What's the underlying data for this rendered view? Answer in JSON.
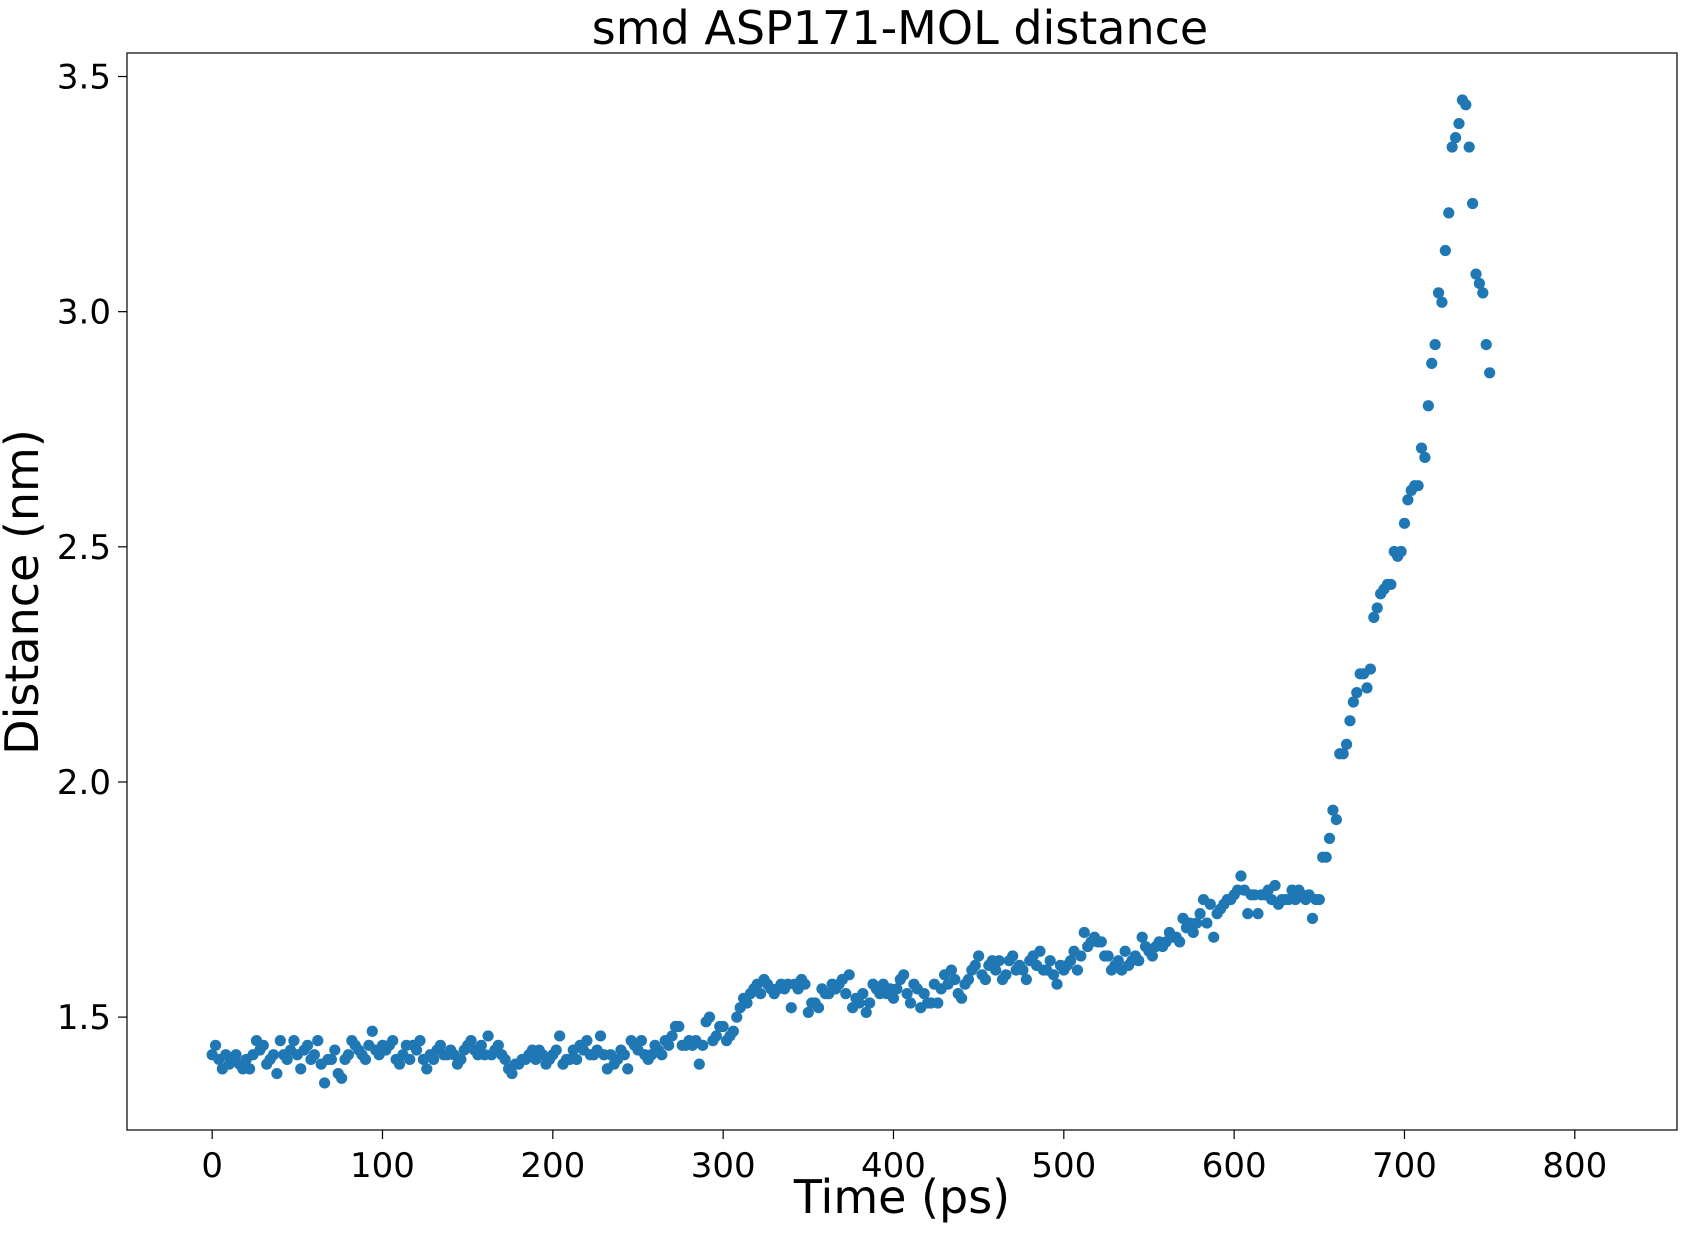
{
  "chart_data": {
    "type": "scatter",
    "title": "smd ASP171-MOL distance",
    "xlabel": "Time (ps)",
    "ylabel": "Distance (nm)",
    "xlim": [
      -50,
      860
    ],
    "ylim": [
      1.26,
      3.55
    ],
    "xticks": [
      0,
      100,
      200,
      300,
      400,
      500,
      600,
      700,
      800
    ],
    "yticks": [
      1.5,
      2.0,
      2.5,
      3.0,
      3.5
    ],
    "ytick_labels": [
      "1.5",
      "2.0",
      "2.5",
      "3.0",
      "3.5"
    ],
    "grid": false,
    "marker_color": "#1f77b4",
    "series": [
      {
        "x_start": 0,
        "x_step": 2,
        "y": [
          1.42,
          1.44,
          1.41,
          1.39,
          1.42,
          1.4,
          1.41,
          1.42,
          1.4,
          1.39,
          1.41,
          1.39,
          1.42,
          1.45,
          1.43,
          1.44,
          1.4,
          1.41,
          1.42,
          1.38,
          1.45,
          1.42,
          1.41,
          1.43,
          1.45,
          1.42,
          1.39,
          1.43,
          1.44,
          1.41,
          1.42,
          1.45,
          1.4,
          1.36,
          1.41,
          1.41,
          1.43,
          1.38,
          1.37,
          1.41,
          1.42,
          1.45,
          1.44,
          1.43,
          1.42,
          1.41,
          1.44,
          1.47,
          1.43,
          1.42,
          1.44,
          1.43,
          1.44,
          1.45,
          1.41,
          1.4,
          1.42,
          1.44,
          1.41,
          1.44,
          1.43,
          1.45,
          1.41,
          1.39,
          1.42,
          1.41,
          1.43,
          1.44,
          1.42,
          1.42,
          1.43,
          1.42,
          1.4,
          1.41,
          1.43,
          1.44,
          1.45,
          1.43,
          1.42,
          1.44,
          1.42,
          1.46,
          1.42,
          1.43,
          1.44,
          1.42,
          1.41,
          1.39,
          1.38,
          1.4,
          1.4,
          1.41,
          1.41,
          1.42,
          1.43,
          1.41,
          1.43,
          1.42,
          1.4,
          1.41,
          1.42,
          1.43,
          1.46,
          1.4,
          1.41,
          1.41,
          1.43,
          1.41,
          1.44,
          1.43,
          1.45,
          1.42,
          1.42,
          1.43,
          1.46,
          1.42,
          1.39,
          1.42,
          1.4,
          1.41,
          1.43,
          1.42,
          1.39,
          1.45,
          1.44,
          1.43,
          1.45,
          1.42,
          1.41,
          1.42,
          1.44,
          1.43,
          1.42,
          1.45,
          1.44,
          1.46,
          1.48,
          1.48,
          1.44,
          1.44,
          1.45,
          1.44,
          1.45,
          1.4,
          1.44,
          1.49,
          1.5,
          1.45,
          1.46,
          1.48,
          1.48,
          1.45,
          1.46,
          1.47,
          1.5,
          1.52,
          1.54,
          1.53,
          1.55,
          1.56,
          1.57,
          1.55,
          1.58,
          1.57,
          1.56,
          1.55,
          1.56,
          1.57,
          1.56,
          1.57,
          1.52,
          1.57,
          1.56,
          1.58,
          1.57,
          1.51,
          1.53,
          1.53,
          1.52,
          1.56,
          1.55,
          1.55,
          1.57,
          1.56,
          1.57,
          1.58,
          1.55,
          1.59,
          1.52,
          1.54,
          1.53,
          1.55,
          1.51,
          1.53,
          1.57,
          1.56,
          1.55,
          1.57,
          1.55,
          1.56,
          1.54,
          1.56,
          1.58,
          1.59,
          1.55,
          1.53,
          1.57,
          1.56,
          1.52,
          1.55,
          1.53,
          1.53,
          1.57,
          1.53,
          1.56,
          1.59,
          1.57,
          1.6,
          1.58,
          1.55,
          1.54,
          1.57,
          1.58,
          1.6,
          1.61,
          1.63,
          1.59,
          1.58,
          1.61,
          1.62,
          1.6,
          1.62,
          1.58,
          1.59,
          1.62,
          1.63,
          1.6,
          1.61,
          1.6,
          1.58,
          1.62,
          1.63,
          1.61,
          1.64,
          1.6,
          1.6,
          1.62,
          1.59,
          1.57,
          1.61,
          1.6,
          1.61,
          1.62,
          1.64,
          1.6,
          1.63,
          1.68,
          1.65,
          1.66,
          1.67,
          1.66,
          1.66,
          1.63,
          1.63,
          1.6,
          1.61,
          1.62,
          1.6,
          1.64,
          1.61,
          1.62,
          1.63,
          1.62,
          1.67,
          1.65,
          1.64,
          1.63,
          1.65,
          1.66,
          1.65,
          1.66,
          1.68,
          1.67,
          1.67,
          1.66,
          1.71,
          1.69,
          1.7,
          1.68,
          1.7,
          1.72,
          1.75,
          1.7,
          1.74,
          1.67,
          1.72,
          1.73,
          1.74,
          1.75,
          1.75,
          1.76,
          1.77,
          1.8,
          1.77,
          1.72,
          1.76,
          1.76,
          1.72,
          1.76,
          1.76,
          1.77,
          1.75,
          1.78,
          1.74,
          1.75,
          1.75,
          1.75,
          1.77,
          1.75,
          1.77,
          1.76,
          1.75,
          1.76,
          1.71,
          1.75,
          1.75,
          1.84,
          1.84,
          1.88,
          1.94,
          1.92,
          2.06,
          2.06,
          2.08,
          2.13,
          2.17,
          2.19,
          2.23,
          2.23,
          2.2,
          2.24,
          2.35,
          2.37,
          2.4,
          2.41,
          2.42,
          2.42,
          2.49,
          2.48,
          2.49,
          2.55,
          2.6,
          2.62,
          2.63,
          2.63,
          2.71,
          2.69,
          2.8,
          2.89,
          2.93,
          3.04,
          3.02,
          3.13,
          3.21,
          3.35,
          3.37,
          3.4,
          3.45,
          3.44,
          3.35,
          3.23,
          3.08,
          3.06,
          3.04,
          2.93,
          2.87
        ]
      }
    ]
  }
}
